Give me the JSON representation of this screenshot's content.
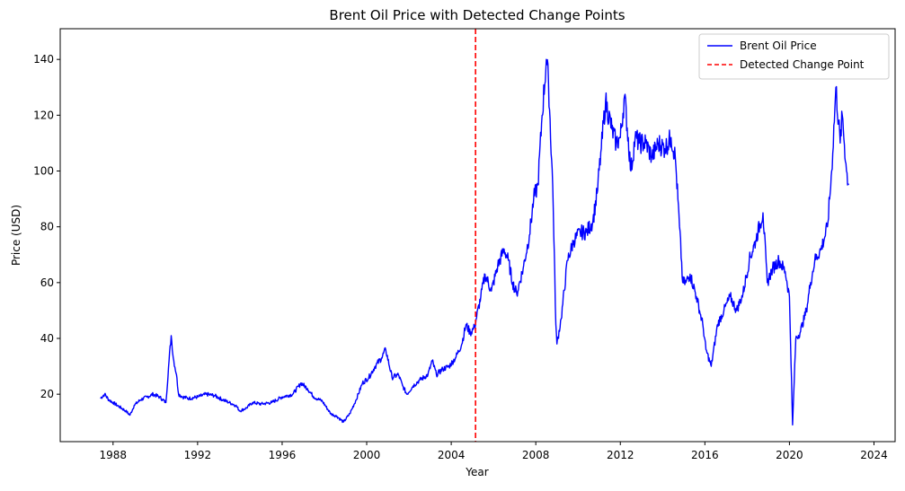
{
  "chart_data": {
    "type": "line",
    "title": "Brent Oil Price with Detected Change Points",
    "xlabel": "Year",
    "ylabel": "Price (USD)",
    "xlim": [
      1985.5,
      2025.0
    ],
    "ylim": [
      3,
      151
    ],
    "xticks": [
      1988,
      1992,
      1996,
      2000,
      2004,
      2008,
      2012,
      2016,
      2020,
      2024
    ],
    "yticks": [
      20,
      40,
      60,
      80,
      100,
      120,
      140
    ],
    "grid": false,
    "legend": {
      "placement": "top-right",
      "entries": [
        "Brent Oil Price",
        "Detected Change Point"
      ]
    },
    "colors": {
      "series": "#0000ff",
      "change_point": "#ff0000"
    },
    "series": [
      {
        "name": "Brent Oil Price",
        "x": [
          1987.4,
          1987.6,
          1987.8,
          1988.0,
          1988.3,
          1988.6,
          1988.8,
          1989.0,
          1989.3,
          1989.6,
          1989.9,
          1990.2,
          1990.5,
          1990.65,
          1990.75,
          1990.85,
          1991.0,
          1991.1,
          1991.3,
          1991.6,
          1992.0,
          1992.4,
          1992.8,
          1993.2,
          1993.5,
          1993.8,
          1994.0,
          1994.3,
          1994.6,
          1995.0,
          1995.5,
          1996.0,
          1996.5,
          1996.9,
          1997.2,
          1997.5,
          1997.9,
          1998.3,
          1998.6,
          1998.9,
          1999.2,
          1999.5,
          1999.8,
          2000.1,
          2000.4,
          2000.7,
          2000.9,
          2001.2,
          2001.5,
          2001.7,
          2001.9,
          2002.2,
          2002.5,
          2002.9,
          2003.1,
          2003.3,
          2003.6,
          2003.9,
          2004.2,
          2004.5,
          2004.7,
          2004.9,
          2005.1,
          2005.4,
          2005.6,
          2005.9,
          2006.2,
          2006.5,
          2006.7,
          2006.9,
          2007.1,
          2007.4,
          2007.7,
          2007.9,
          2008.1,
          2008.3,
          2008.5,
          2008.6,
          2008.8,
          2008.95,
          2009.0,
          2009.2,
          2009.5,
          2009.8,
          2010.1,
          2010.4,
          2010.7,
          2010.9,
          2011.1,
          2011.3,
          2011.6,
          2011.8,
          2012.0,
          2012.2,
          2012.5,
          2012.7,
          2012.9,
          2013.2,
          2013.5,
          2013.8,
          2014.1,
          2014.4,
          2014.6,
          2014.8,
          2014.95,
          2015.1,
          2015.3,
          2015.6,
          2015.9,
          2016.05,
          2016.3,
          2016.6,
          2016.9,
          2017.2,
          2017.5,
          2017.8,
          2018.1,
          2018.4,
          2018.75,
          2018.95,
          2019.2,
          2019.5,
          2019.8,
          2020.0,
          2020.15,
          2020.3,
          2020.5,
          2020.8,
          2021.0,
          2021.2,
          2021.5,
          2021.8,
          2022.0,
          2022.2,
          2022.4,
          2022.5,
          2022.7,
          2022.8
        ],
        "y": [
          18.5,
          20,
          18,
          17,
          15.5,
          14,
          12.5,
          16,
          18,
          19,
          20,
          19,
          17,
          32,
          41,
          33,
          27,
          20,
          19,
          18.5,
          19,
          20,
          19.5,
          18,
          17,
          16,
          14,
          15,
          17,
          16.5,
          17,
          19,
          20,
          24,
          22,
          19,
          17.5,
          13,
          12,
          10,
          13,
          18,
          24,
          26,
          30,
          33,
          36,
          26,
          27,
          23,
          20,
          23,
          25,
          27,
          32,
          27,
          29,
          30,
          33,
          38,
          45,
          42,
          44,
          55,
          63,
          57,
          66,
          72,
          68,
          60,
          56,
          65,
          77,
          90,
          95,
          120,
          140,
          132,
          95,
          45,
          38,
          47,
          68,
          75,
          78,
          78,
          82,
          92,
          108,
          125,
          115,
          110,
          112,
          127,
          100,
          112,
          110,
          110,
          105,
          110,
          108,
          112,
          105,
          80,
          60,
          60,
          63,
          55,
          45,
          36,
          30,
          45,
          50,
          55,
          50,
          56,
          68,
          75,
          85,
          60,
          65,
          68,
          64,
          55,
          9,
          40,
          42,
          50,
          60,
          68,
          72,
          80,
          100,
          130,
          110,
          120,
          100,
          95
        ]
      }
    ],
    "change_points": [
      2005.15
    ]
  }
}
